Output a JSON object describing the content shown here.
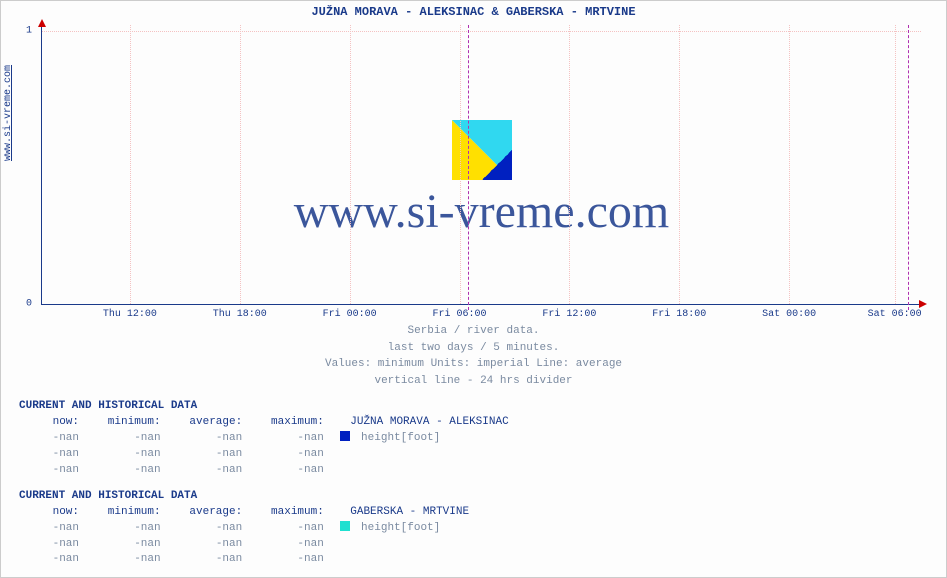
{
  "site_label": "www.si-vreme.com",
  "chart": {
    "title": "JUŽNA MORAVA -  ALEKSINAC &  GABERSKA -  MRTVINE",
    "type": "line",
    "background_color": "#fdfdfd",
    "axis_color": "#1a3a8a",
    "grid_color": "#f4c2c2",
    "divider_color": "#b030b0",
    "text_color": "#1a3a8a",
    "muted_color": "#7a8aa0",
    "arrow_color": "#c00000",
    "ylim": [
      0,
      1
    ],
    "yticks": [
      {
        "v": 0,
        "label": "0",
        "pos_pct": 100
      },
      {
        "v": 1,
        "label": "1",
        "pos_pct": 2
      }
    ],
    "xticks": [
      {
        "label": "Thu 12:00",
        "pos_pct": 10
      },
      {
        "label": "Thu 18:00",
        "pos_pct": 22.5
      },
      {
        "label": "Fri 00:00",
        "pos_pct": 35
      },
      {
        "label": "Fri 06:00",
        "pos_pct": 47.5
      },
      {
        "label": "Fri 12:00",
        "pos_pct": 60
      },
      {
        "label": "Fri 18:00",
        "pos_pct": 72.5
      },
      {
        "label": "Sat 00:00",
        "pos_pct": 85
      },
      {
        "label": "Sat 06:00",
        "pos_pct": 97
      }
    ],
    "dividers_pct": [
      48.5,
      98.5
    ],
    "vgrid_pct": [
      10,
      22.5,
      35,
      47.5,
      60,
      72.5,
      85,
      97
    ],
    "hgrid_pct": [
      2
    ],
    "watermark": "www.si-vreme.com",
    "caption": [
      "Serbia / river data.",
      "last two days / 5 minutes.",
      "Values: minimum  Units: imperial  Line: average",
      "vertical line - 24 hrs  divider"
    ]
  },
  "tables": {
    "header": "CURRENT AND HISTORICAL DATA",
    "cols": {
      "c1": "now:",
      "c2": "minimum:",
      "c3": "average:",
      "c4": "maximum:"
    },
    "nan": "-nan",
    "station1": {
      "name": "JUŽNA MORAVA -  ALEKSINAC",
      "swatch": "#0020c0",
      "metric": "height[foot]"
    },
    "station2": {
      "name": "GABERSKA -  MRTVINE",
      "swatch": "#20e0d0",
      "metric": "height[foot]"
    }
  }
}
